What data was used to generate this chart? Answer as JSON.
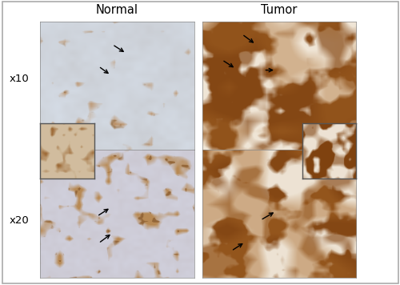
{
  "title_normal": "Normal",
  "title_tumor": "Tumor",
  "label_x10": "x10",
  "label_x20": "x20",
  "figsize": [
    5.0,
    3.56
  ],
  "dpi": 100,
  "bg_color": "#ffffff",
  "outer_border_color": "#aaaaaa",
  "normal_x10": {
    "bg": [
      0.84,
      0.87,
      0.91
    ],
    "stain": [
      0.72,
      0.52,
      0.32
    ],
    "stain_dark": [
      0.55,
      0.38,
      0.2
    ]
  },
  "tumor_x10": {
    "bg": [
      0.94,
      0.9,
      0.84
    ],
    "stain": [
      0.52,
      0.28,
      0.08
    ],
    "stain_mid": [
      0.65,
      0.4,
      0.15
    ]
  },
  "normal_x20": {
    "bg": [
      0.82,
      0.82,
      0.87
    ],
    "stain": [
      0.72,
      0.54,
      0.33
    ],
    "stain_dark": [
      0.58,
      0.4,
      0.22
    ]
  },
  "tumor_x20": {
    "bg": [
      0.93,
      0.89,
      0.83
    ],
    "stain": [
      0.52,
      0.28,
      0.08
    ],
    "stain_mid": [
      0.65,
      0.4,
      0.15
    ]
  },
  "inset_normal": {
    "bg": [
      0.82,
      0.74,
      0.62
    ],
    "stain": [
      0.62,
      0.42,
      0.22
    ]
  },
  "inset_tumor": {
    "bg": [
      0.93,
      0.89,
      0.83
    ],
    "stain": [
      0.5,
      0.26,
      0.06
    ]
  }
}
